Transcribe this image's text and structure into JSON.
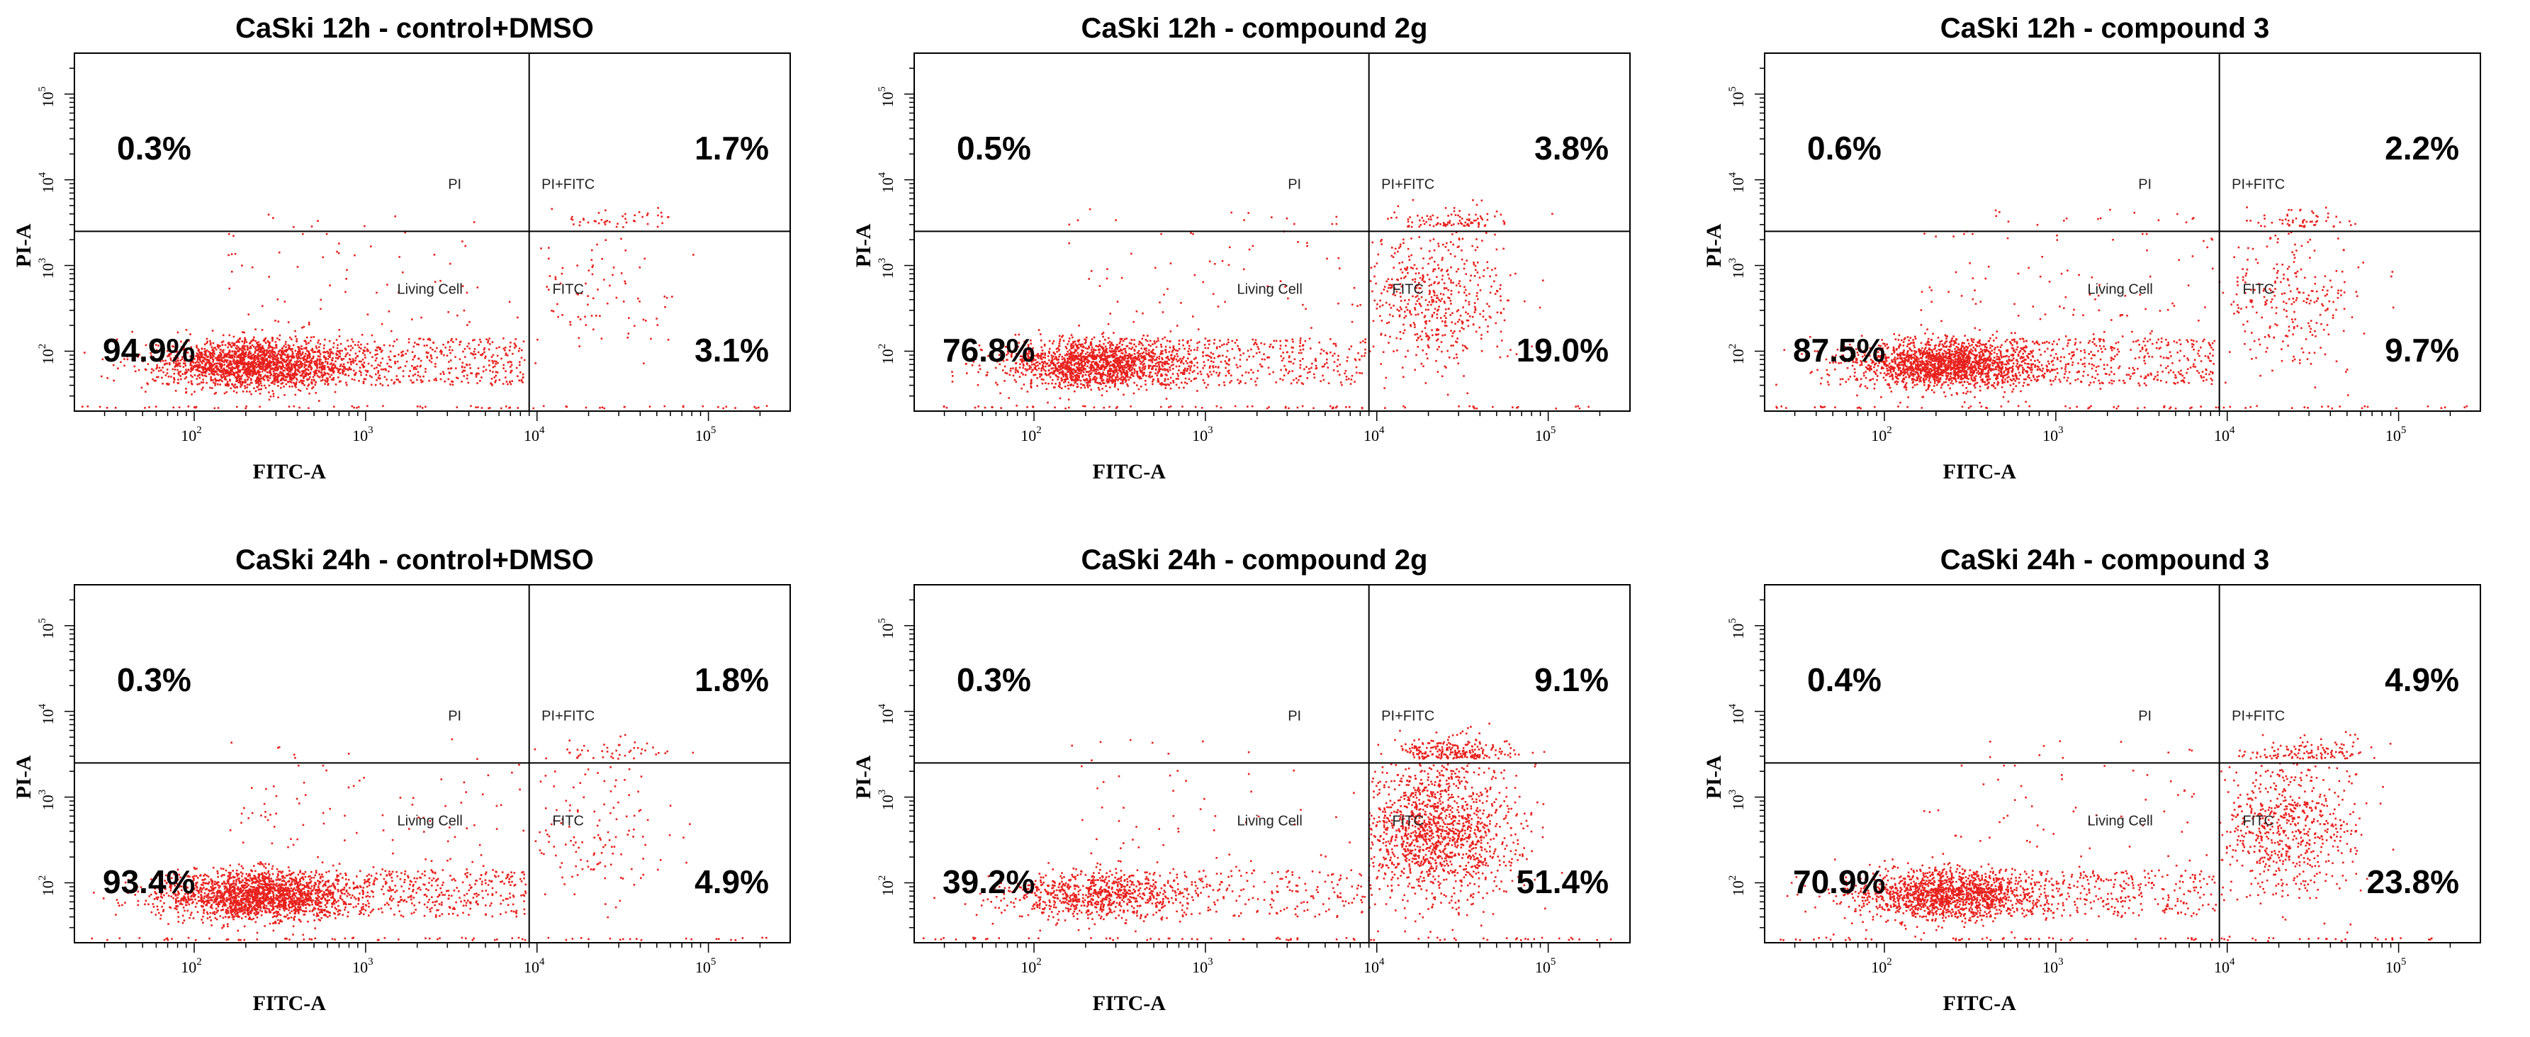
{
  "figure": {
    "x_axis_label": "FITC-A",
    "y_axis_label": "PI-A",
    "x_ticks": [
      {
        "base": "10",
        "exp": "2"
      },
      {
        "base": "10",
        "exp": "3"
      },
      {
        "base": "10",
        "exp": "4"
      },
      {
        "base": "10",
        "exp": "5"
      }
    ],
    "y_ticks": [
      {
        "base": "10",
        "exp": "2"
      },
      {
        "base": "10",
        "exp": "3"
      },
      {
        "base": "10",
        "exp": "4"
      },
      {
        "base": "10",
        "exp": "5"
      }
    ],
    "quadrant_labels": {
      "ul": "PI",
      "ur": "PI+FITC",
      "ll": "Living Cell",
      "lr": "FITC"
    },
    "colors": {
      "dots": "#e8201c",
      "frame": "#000000",
      "background": "#ffffff"
    }
  },
  "chart_data": [
    {
      "type": "scatter",
      "title": "CaSki 12h - control+DMSO",
      "xlabel": "FITC-A",
      "ylabel": "PI-A",
      "x_scale": "log",
      "y_scale": "log",
      "xlim": [
        20,
        300000
      ],
      "ylim": [
        20,
        300000
      ],
      "gate_x": 9000,
      "gate_y": 2500,
      "quadrant_percent": {
        "upper_left": "0.3%",
        "upper_right": "1.7%",
        "lower_left": "94.9%",
        "lower_right": "3.1%"
      }
    },
    {
      "type": "scatter",
      "title": "CaSki 12h - compound 2g",
      "xlabel": "FITC-A",
      "ylabel": "PI-A",
      "x_scale": "log",
      "y_scale": "log",
      "xlim": [
        20,
        300000
      ],
      "ylim": [
        20,
        300000
      ],
      "gate_x": 9000,
      "gate_y": 2500,
      "quadrant_percent": {
        "upper_left": "0.5%",
        "upper_right": "3.8%",
        "lower_left": "76.8%",
        "lower_right": "19.0%"
      }
    },
    {
      "type": "scatter",
      "title": "CaSki 12h - compound 3",
      "xlabel": "FITC-A",
      "ylabel": "PI-A",
      "x_scale": "log",
      "y_scale": "log",
      "xlim": [
        20,
        300000
      ],
      "ylim": [
        20,
        300000
      ],
      "gate_x": 9000,
      "gate_y": 2500,
      "quadrant_percent": {
        "upper_left": "0.6%",
        "upper_right": "2.2%",
        "lower_left": "87.5%",
        "lower_right": "9.7%"
      }
    },
    {
      "type": "scatter",
      "title": "CaSki 24h - control+DMSO",
      "xlabel": "FITC-A",
      "ylabel": "PI-A",
      "x_scale": "log",
      "y_scale": "log",
      "xlim": [
        20,
        300000
      ],
      "ylim": [
        20,
        300000
      ],
      "gate_x": 9000,
      "gate_y": 2500,
      "quadrant_percent": {
        "upper_left": "0.3%",
        "upper_right": "1.8%",
        "lower_left": "93.4%",
        "lower_right": "4.9%"
      }
    },
    {
      "type": "scatter",
      "title": "CaSki 24h - compound 2g",
      "xlabel": "FITC-A",
      "ylabel": "PI-A",
      "x_scale": "log",
      "y_scale": "log",
      "xlim": [
        20,
        300000
      ],
      "ylim": [
        20,
        300000
      ],
      "gate_x": 9000,
      "gate_y": 2500,
      "quadrant_percent": {
        "upper_left": "0.3%",
        "upper_right": "9.1%",
        "lower_left": "39.2%",
        "lower_right": "51.4%"
      }
    },
    {
      "type": "scatter",
      "title": "CaSki 24h - compound 3",
      "xlabel": "FITC-A",
      "ylabel": "PI-A",
      "x_scale": "log",
      "y_scale": "log",
      "xlim": [
        20,
        300000
      ],
      "ylim": [
        20,
        300000
      ],
      "gate_x": 9000,
      "gate_y": 2500,
      "quadrant_percent": {
        "upper_left": "0.4%",
        "upper_right": "4.9%",
        "lower_left": "70.9%",
        "lower_right": "23.8%"
      }
    }
  ]
}
